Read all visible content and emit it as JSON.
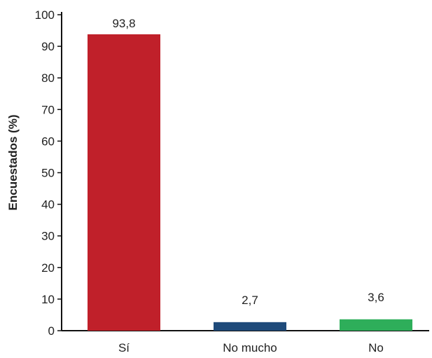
{
  "chart_data": {
    "type": "bar",
    "categories": [
      "Sí",
      "No mucho",
      "No"
    ],
    "values": [
      93.8,
      2.7,
      3.6
    ],
    "value_labels": [
      "93,8",
      "2,7",
      "3,6"
    ],
    "bar_colors": [
      "#c0202a",
      "#1e4a7a",
      "#2eae5a"
    ],
    "title": "",
    "xlabel": "",
    "ylabel": "Encuestados (%)",
    "ylim": [
      0,
      100
    ],
    "yticks": [
      0,
      10,
      20,
      30,
      40,
      50,
      60,
      70,
      80,
      90,
      100
    ],
    "grid": false,
    "legend": "none"
  }
}
